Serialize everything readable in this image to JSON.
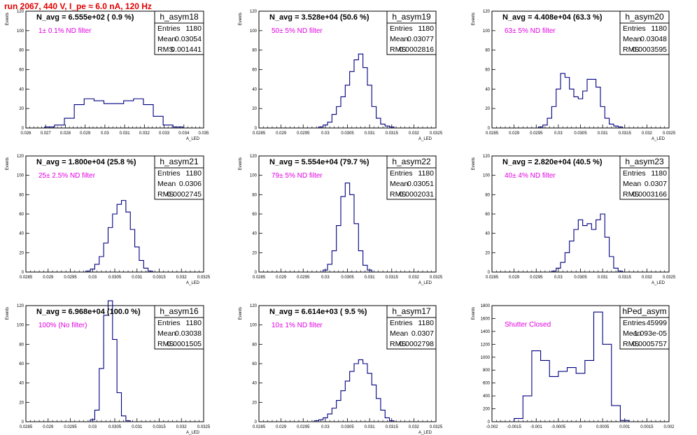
{
  "page_title": "run 2067,   440 V, I_pe ≈ 6.0 nA, 120 Hz",
  "chart_data": [
    {
      "type": "histogram",
      "stat_name": "h_asym18",
      "title": "N_avg = 6.555e+02 ( 0.9 %)",
      "filter": "1± 0.1% ND filter",
      "stats": {
        "Entries": "1180",
        "Mean": "0.03054",
        "RMS": "0.001441"
      },
      "xlabel": "A_LED",
      "ylabel": "Events",
      "xlim": [
        0.026,
        0.035
      ],
      "ylim": [
        0,
        120
      ],
      "x_ticks": [
        "0.026",
        "0.027",
        "0.028",
        "0.029",
        "0.03",
        "0.031",
        "0.032",
        "0.033",
        "0.034",
        "0.035"
      ],
      "y_ticks": [
        "0",
        "20",
        "40",
        "60",
        "80",
        "100",
        "120"
      ],
      "x": [
        0.0272,
        0.0277,
        0.0282,
        0.0287,
        0.0292,
        0.0297,
        0.0302,
        0.0307,
        0.0312,
        0.0317,
        0.0322,
        0.0327,
        0.0332,
        0.0337
      ],
      "values": [
        1,
        3,
        10,
        24,
        30,
        28,
        25,
        25,
        28,
        30,
        24,
        12,
        3,
        1
      ]
    },
    {
      "type": "histogram",
      "stat_name": "h_asym19",
      "title": "N_avg = 3.528e+04 (50.6 %)",
      "filter": "50± 5% ND filter",
      "stats": {
        "Entries": "1180",
        "Mean": "0.03077",
        "RMS": "0.0002816"
      },
      "xlabel": "A_LED",
      "ylabel": "Events",
      "xlim": [
        0.0285,
        0.0325
      ],
      "ylim": [
        0,
        120
      ],
      "x_ticks": [
        "0.0285",
        "0.029",
        "0.0295",
        "0.03",
        "0.0305",
        "0.031",
        "0.0315",
        "0.032",
        "0.0325"
      ],
      "y_ticks": [
        "0",
        "20",
        "40",
        "60",
        "80",
        "100",
        "120"
      ],
      "x": [
        0.0299,
        0.03,
        0.0301,
        0.0302,
        0.0303,
        0.0304,
        0.0305,
        0.0306,
        0.0307,
        0.0308,
        0.0309,
        0.031,
        0.0311,
        0.0312,
        0.0313,
        0.0314,
        0.0315
      ],
      "values": [
        1,
        3,
        6,
        14,
        22,
        32,
        44,
        58,
        70,
        76,
        62,
        44,
        22,
        10,
        4,
        2,
        1
      ]
    },
    {
      "type": "histogram",
      "stat_name": "h_asym20",
      "title": "N_avg = 4.408e+04 (63.3 %)",
      "filter": "63± 5% ND filter",
      "stats": {
        "Entries": "1180",
        "Mean": "0.03048",
        "RMS": "0.0003595"
      },
      "xlabel": "A_LED",
      "ylabel": "Events",
      "xlim": [
        0.0285,
        0.0325
      ],
      "ylim": [
        0,
        120
      ],
      "x_ticks": [
        "0.0285",
        "0.029",
        "0.0295",
        "0.03",
        "0.0305",
        "0.031",
        "0.0315",
        "0.032",
        "0.0325"
      ],
      "y_ticks": [
        "0",
        "20",
        "40",
        "60",
        "80",
        "100",
        "120"
      ],
      "x": [
        0.0296,
        0.0297,
        0.0298,
        0.0299,
        0.03,
        0.0301,
        0.0302,
        0.0303,
        0.0304,
        0.0305,
        0.0306,
        0.0307,
        0.0308,
        0.0309,
        0.031,
        0.0311,
        0.0312,
        0.0313,
        0.0314
      ],
      "values": [
        1,
        3,
        10,
        22,
        40,
        56,
        52,
        40,
        32,
        30,
        38,
        50,
        50,
        42,
        22,
        10,
        4,
        2,
        1
      ]
    },
    {
      "type": "histogram",
      "stat_name": "h_asym21",
      "title": "N_avg = 1.800e+04 (25.8 %)",
      "filter": "25± 2.5% ND filter",
      "stats": {
        "Entries": "1180",
        "Mean": "0.0306",
        "RMS": "0.0002745"
      },
      "xlabel": "A_LED",
      "ylabel": "Events",
      "xlim": [
        0.0285,
        0.0325
      ],
      "ylim": [
        0,
        120
      ],
      "x_ticks": [
        "0.0285",
        "0.029",
        "0.0295",
        "0.03",
        "0.0305",
        "0.031",
        "0.0315",
        "0.032",
        "0.0325"
      ],
      "y_ticks": [
        "0",
        "20",
        "40",
        "60",
        "80",
        "100",
        "120"
      ],
      "x": [
        0.0299,
        0.03,
        0.0301,
        0.0302,
        0.0303,
        0.0304,
        0.0305,
        0.0306,
        0.0307,
        0.0308,
        0.0309,
        0.031,
        0.0311,
        0.0312,
        0.0313
      ],
      "values": [
        1,
        3,
        8,
        16,
        30,
        46,
        60,
        70,
        74,
        62,
        44,
        26,
        12,
        4,
        1
      ]
    },
    {
      "type": "histogram",
      "stat_name": "h_asym22",
      "title": "N_avg = 5.554e+04 (79.7 %)",
      "filter": "79± 5% ND filter",
      "stats": {
        "Entries": "1180",
        "Mean": "0.03051",
        "RMS": "0.0002031"
      },
      "xlabel": "A_LED",
      "ylabel": "Events",
      "xlim": [
        0.0285,
        0.0325
      ],
      "ylim": [
        0,
        120
      ],
      "x_ticks": [
        "0.0285",
        "0.029",
        "0.0295",
        "0.03",
        "0.0305",
        "0.031",
        "0.0315",
        "0.032",
        "0.0325"
      ],
      "y_ticks": [
        "0",
        "20",
        "40",
        "60",
        "80",
        "100",
        "120"
      ],
      "x": [
        0.03,
        0.0301,
        0.0302,
        0.0303,
        0.0304,
        0.0305,
        0.0306,
        0.0307,
        0.0308,
        0.0309,
        0.031
      ],
      "values": [
        2,
        8,
        22,
        48,
        78,
        92,
        80,
        50,
        22,
        7,
        2
      ]
    },
    {
      "type": "histogram",
      "stat_name": "h_asym23",
      "title": "N_avg = 2.820e+04 (40.5 %)",
      "filter": "40± 4% ND filter",
      "stats": {
        "Entries": "1180",
        "Mean": "0.0307",
        "RMS": "0.0003166"
      },
      "xlabel": "A_LED",
      "ylabel": "Events",
      "xlim": [
        0.0285,
        0.0325
      ],
      "ylim": [
        0,
        120
      ],
      "x_ticks": [
        "0.0285",
        "0.029",
        "0.0295",
        "0.03",
        "0.0305",
        "0.031",
        "0.0315",
        "0.032",
        "0.0325"
      ],
      "y_ticks": [
        "0",
        "20",
        "40",
        "60",
        "80",
        "100",
        "120"
      ],
      "x": [
        0.0299,
        0.03,
        0.0301,
        0.0302,
        0.0303,
        0.0304,
        0.0305,
        0.0306,
        0.0307,
        0.0308,
        0.0309,
        0.031,
        0.0311,
        0.0312,
        0.0313,
        0.0314
      ],
      "values": [
        1,
        4,
        10,
        20,
        32,
        44,
        54,
        48,
        50,
        44,
        54,
        60,
        36,
        16,
        4,
        1
      ]
    },
    {
      "type": "histogram",
      "stat_name": "h_asym16",
      "title": "N_avg = 6.968e+04 (100.0 %)",
      "filter": "100% (No filter)",
      "stats": {
        "Entries": "1180",
        "Mean": "0.03038",
        "RMS": "0.0001505"
      },
      "xlabel": "A_LED",
      "ylabel": "Events",
      "xlim": [
        0.0285,
        0.0325
      ],
      "ylim": [
        0,
        120
      ],
      "x_ticks": [
        "0.0285",
        "0.029",
        "0.0295",
        "0.03",
        "0.0305",
        "0.031",
        "0.0315",
        "0.032",
        "0.0325"
      ],
      "y_ticks": [
        "0",
        "20",
        "40",
        "60",
        "80",
        "100",
        "120"
      ],
      "x": [
        0.03,
        0.0301,
        0.0302,
        0.0303,
        0.0304,
        0.0305,
        0.0306,
        0.0307,
        0.0308
      ],
      "values": [
        2,
        12,
        55,
        110,
        125,
        85,
        30,
        6,
        1
      ]
    },
    {
      "type": "histogram",
      "stat_name": "h_asym17",
      "title": "N_avg = 6.614e+03 ( 9.5 %)",
      "filter": "10± 1% ND filter",
      "stats": {
        "Entries": "1180",
        "Mean": "0.0307",
        "RMS": "0.0002798"
      },
      "xlabel": "A_LED",
      "ylabel": "Events",
      "xlim": [
        0.0285,
        0.0325
      ],
      "ylim": [
        0,
        120
      ],
      "x_ticks": [
        "0.0285",
        "0.029",
        "0.0295",
        "0.03",
        "0.0305",
        "0.031",
        "0.0315",
        "0.032",
        "0.0325"
      ],
      "y_ticks": [
        "0",
        "20",
        "40",
        "60",
        "80",
        "100",
        "120"
      ],
      "x": [
        0.0298,
        0.0299,
        0.03,
        0.0301,
        0.0302,
        0.0303,
        0.0304,
        0.0305,
        0.0306,
        0.0307,
        0.0308,
        0.0309,
        0.031,
        0.0311,
        0.0312,
        0.0313,
        0.0314,
        0.0315
      ],
      "values": [
        1,
        2,
        4,
        8,
        14,
        22,
        32,
        42,
        52,
        60,
        64,
        60,
        50,
        38,
        24,
        12,
        4,
        1
      ]
    },
    {
      "type": "histogram",
      "stat_name": "hPed_asym",
      "title": "",
      "filter": "Shutter Closed",
      "stats": {
        "Entries": "45999",
        "Mean": "-1.093e-05",
        "RMS": "0.0005757"
      },
      "xlabel": "",
      "ylabel": "Events",
      "xlim": [
        -0.002,
        0.002
      ],
      "ylim": [
        0,
        1800
      ],
      "x_ticks": [
        "-0.002",
        "-0.0015",
        "-0.001",
        "-0.0005",
        "0",
        "0.0005",
        "0.001",
        "0.0015",
        "0.002"
      ],
      "y_ticks": [
        "0",
        "200",
        "400",
        "600",
        "800",
        "1000",
        "1200",
        "1400",
        "1600",
        "1800"
      ],
      "x": [
        -0.0014,
        -0.0012,
        -0.001,
        -0.0008,
        -0.0006,
        -0.0004,
        -0.0002,
        0,
        0.0002,
        0.0004,
        0.0006,
        0.0008,
        0.001
      ],
      "values": [
        50,
        400,
        1100,
        950,
        700,
        780,
        840,
        750,
        950,
        1700,
        1200,
        250,
        20
      ]
    }
  ]
}
